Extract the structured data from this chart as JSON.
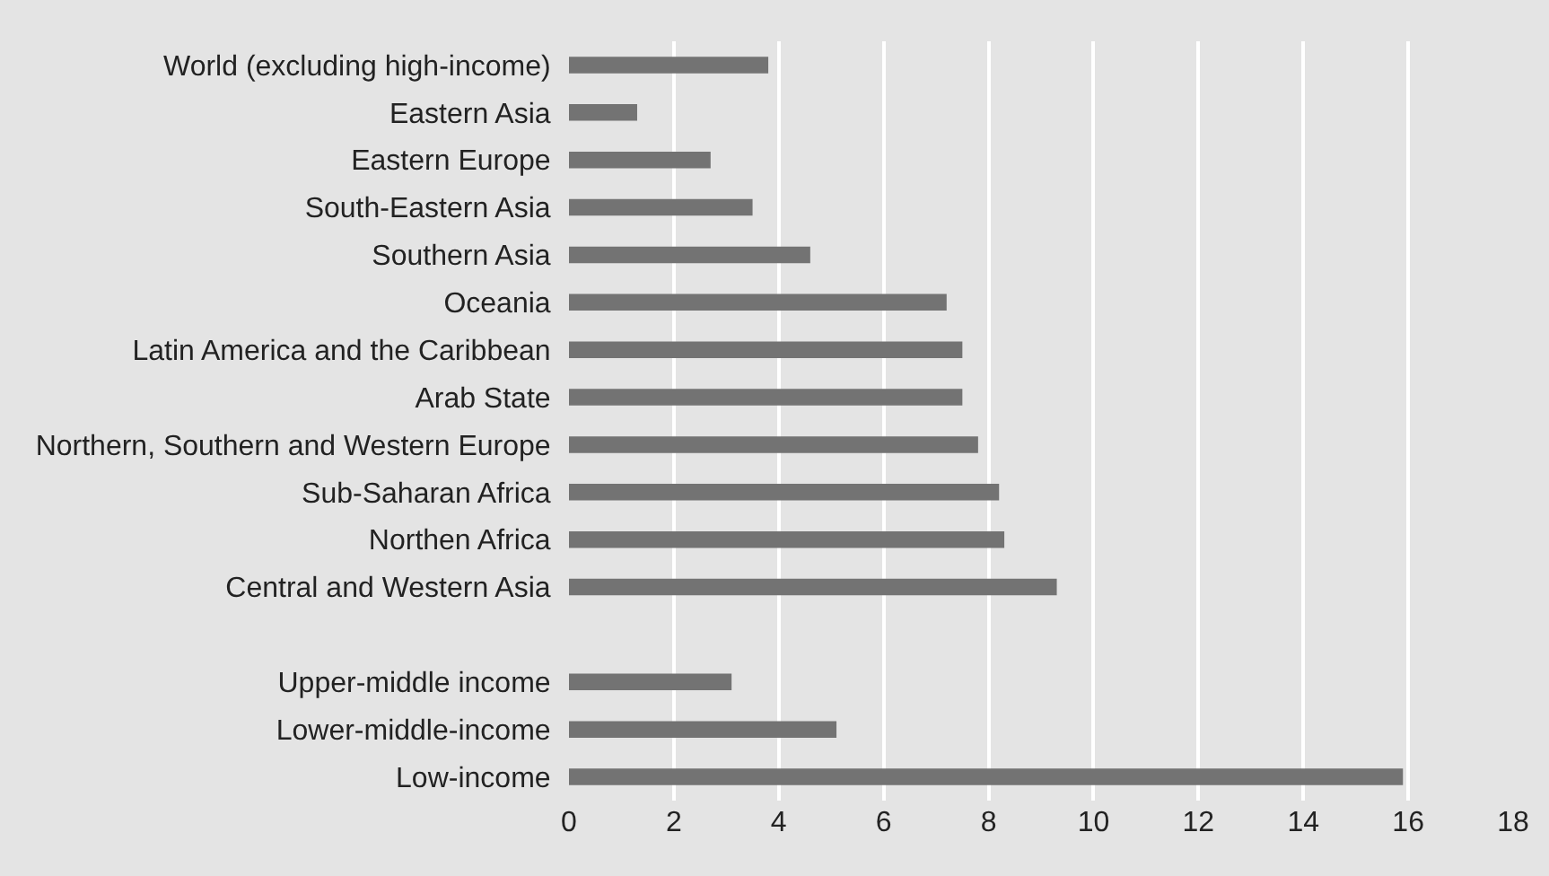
{
  "chart_data": {
    "type": "bar",
    "orientation": "horizontal",
    "categories": [
      "World (excluding high-income)",
      "Eastern Asia",
      "Eastern Europe",
      "South-Eastern Asia",
      "Southern Asia",
      "Oceania",
      "Latin America and the Caribbean",
      "Arab State",
      "Northern, Southern and Western Europe",
      "Sub-Saharan Africa",
      "Northen Africa",
      "Central and Western Asia",
      null,
      "Upper-middle income",
      "Lower-middle-income",
      "Low-income"
    ],
    "values": [
      3.8,
      1.3,
      2.7,
      3.5,
      4.6,
      7.2,
      7.5,
      7.5,
      7.8,
      8.2,
      8.3,
      9.3,
      null,
      3.1,
      5.1,
      15.9
    ],
    "color": "#737373",
    "xlim": [
      0,
      18
    ],
    "xticks": [
      0,
      2,
      4,
      6,
      8,
      10,
      12,
      14,
      16,
      18
    ],
    "grid": "x"
  }
}
